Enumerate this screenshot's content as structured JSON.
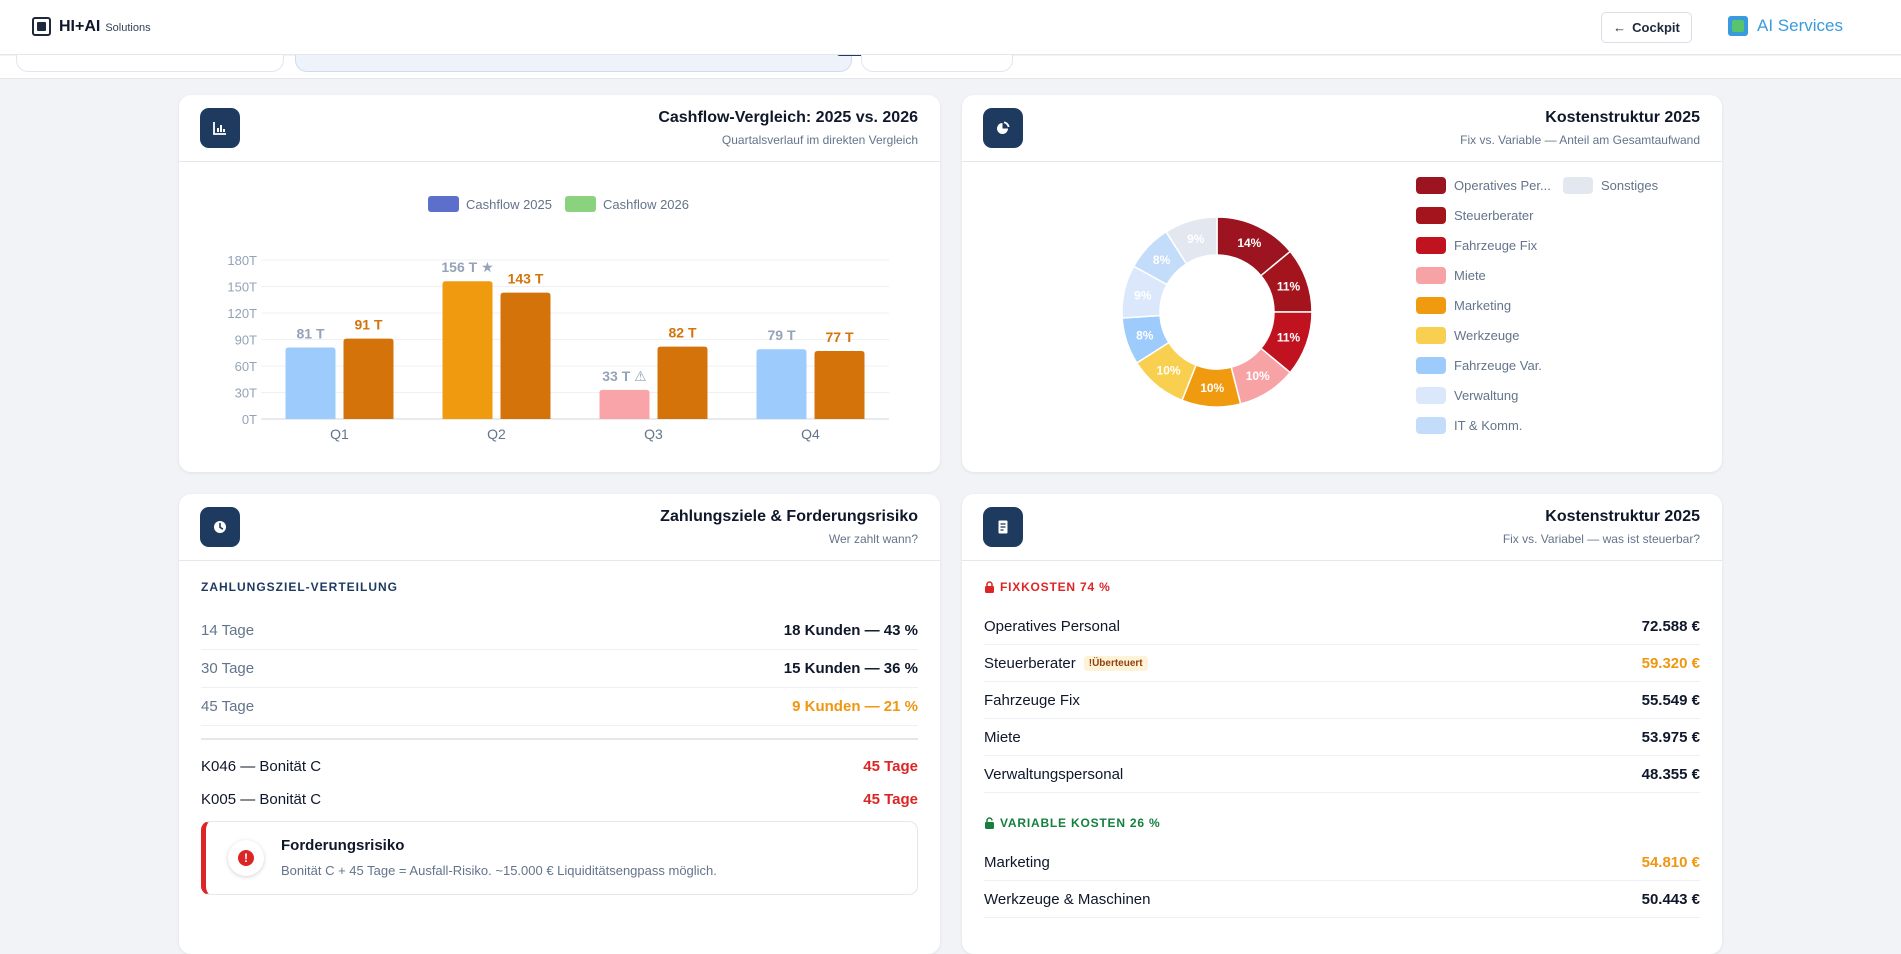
{
  "header": {
    "brand_name": "HI+AI",
    "brand_sub": "Solutions",
    "cockpit_label": "Cockpit",
    "ai_services_label": "AI Services",
    "colors": {
      "accent": "#3a9bdc",
      "primary": "#1e3a5f"
    }
  },
  "cashflow_card": {
    "title": "Cashflow-Vergleich: 2025 vs. 2026",
    "subtitle": "Quartalsverlauf im direkten Vergleich",
    "icon": "bar-chart-icon"
  },
  "cost_card": {
    "title": "Kostenstruktur 2025",
    "subtitle": "Fix vs. Variable — Anteil am Gesamtaufwand",
    "icon": "pie-chart-icon"
  },
  "chart_data": [
    {
      "type": "bar",
      "categories": [
        "Q1",
        "Q2",
        "Q3",
        "Q4"
      ],
      "series": [
        {
          "name": "Cashflow 2025",
          "values": [
            81,
            156,
            33,
            79
          ],
          "labels": [
            "81 T",
            "156 T ★",
            "33 T ⚠",
            "79 T"
          ],
          "legend_color": "#5b6fcb",
          "bar_colors": [
            "#9dcbfb",
            "#f09a10",
            "#f9a4a8",
            "#9dcbfb"
          ],
          "label_color": "#94a3b8"
        },
        {
          "name": "Cashflow 2026",
          "values": [
            91,
            143,
            82,
            77
          ],
          "labels": [
            "91 T",
            "143 T",
            "82 T",
            "77 T"
          ],
          "legend_color": "#8bd27e",
          "bar_colors": [
            "#d4730a",
            "#d4730a",
            "#d4730a",
            "#d4730a"
          ],
          "label_color": "#d4730a"
        }
      ],
      "y_ticks": [
        "0T",
        "30T",
        "60T",
        "90T",
        "120T",
        "150T",
        "180T"
      ],
      "ylim": [
        0,
        180
      ],
      "grid": true,
      "legend": "top-center"
    },
    {
      "type": "pie",
      "variant": "donut",
      "slices": [
        {
          "label": "Operatives Per...",
          "value": 14,
          "text": "14%",
          "color": "#9b1420"
        },
        {
          "label": "Steuerberater",
          "value": 11,
          "text": "11%",
          "color": "#a3141d"
        },
        {
          "label": "Fahrzeuge Fix",
          "value": 11,
          "text": "11%",
          "color": "#c0121f"
        },
        {
          "label": "Miete",
          "value": 10,
          "text": "10%",
          "color": "#f7a3a6"
        },
        {
          "label": "Marketing",
          "value": 10,
          "text": "10%",
          "color": "#f09a10"
        },
        {
          "label": "Werkzeuge",
          "value": 10,
          "text": "10%",
          "color": "#f8cf4f"
        },
        {
          "label": "Fahrzeuge Var.",
          "value": 8,
          "text": "8%",
          "color": "#9dcbfb"
        },
        {
          "label": "Verwaltung",
          "value": 9,
          "text": "9%",
          "color": "#dbe8fb"
        },
        {
          "label": "IT & Komm.",
          "value": 8,
          "text": "8%",
          "color": "#c3dcfa"
        },
        {
          "label": "Sonstiges",
          "value": 9,
          "text": "9%",
          "color": "#e3e8f0"
        }
      ],
      "legend": "right"
    }
  ],
  "payment_card": {
    "title": "Zahlungsziele & Forderungsrisiko",
    "subtitle": "Wer zahlt wann?",
    "icon": "clock-icon",
    "section_label": "ZAHLUNGSZIEL-VERTEILUNG",
    "terms": [
      {
        "label": "14 Tage",
        "value": "18 Kunden — 43 %",
        "status": "normal"
      },
      {
        "label": "30 Tage",
        "value": "15 Kunden — 36 %",
        "status": "normal"
      },
      {
        "label": "45 Tage",
        "value": "9 Kunden — 21 %",
        "status": "warn"
      }
    ],
    "risk_customers": [
      {
        "label": "K046 — Bonität C",
        "value": "45 Tage"
      },
      {
        "label": "K005 — Bonität C",
        "value": "45 Tage"
      }
    ],
    "alert": {
      "icon": "alert-circle-icon",
      "symbol": "!",
      "title": "Forderungsrisiko",
      "text": "Bonität C + 45 Tage = Ausfall-Risiko. ~15.000 € Liquiditätsengpass möglich."
    }
  },
  "cost_detail_card": {
    "title": "Kostenstruktur 2025",
    "subtitle": "Fix vs. Variabel — was ist steuerbar?",
    "icon": "document-icon",
    "fixed_label": "FIXKOSTEN 74 %",
    "fixed_color": "#dc2626",
    "fixed_icon": "lock-icon",
    "fixed_items": [
      {
        "label": "Operatives Personal",
        "value": "72.588 €",
        "badge": "",
        "status": "normal"
      },
      {
        "label": "Steuerberater",
        "value": "59.320 €",
        "badge": "!Überteuert",
        "status": "warn"
      },
      {
        "label": "Fahrzeuge Fix",
        "value": "55.549 €",
        "badge": "",
        "status": "normal"
      },
      {
        "label": "Miete",
        "value": "53.975 €",
        "badge": "",
        "status": "normal"
      },
      {
        "label": "Verwaltungspersonal",
        "value": "48.355 €",
        "badge": "",
        "status": "normal"
      }
    ],
    "variable_label": "VARIABLE KOSTEN 26 %",
    "variable_color": "#15803d",
    "variable_icon": "unlock-icon",
    "variable_items": [
      {
        "label": "Marketing",
        "value": "54.810 €",
        "badge": "",
        "status": "warn"
      },
      {
        "label": "Werkzeuge & Maschinen",
        "value": "50.443 €",
        "badge": "",
        "status": "normal"
      }
    ]
  }
}
